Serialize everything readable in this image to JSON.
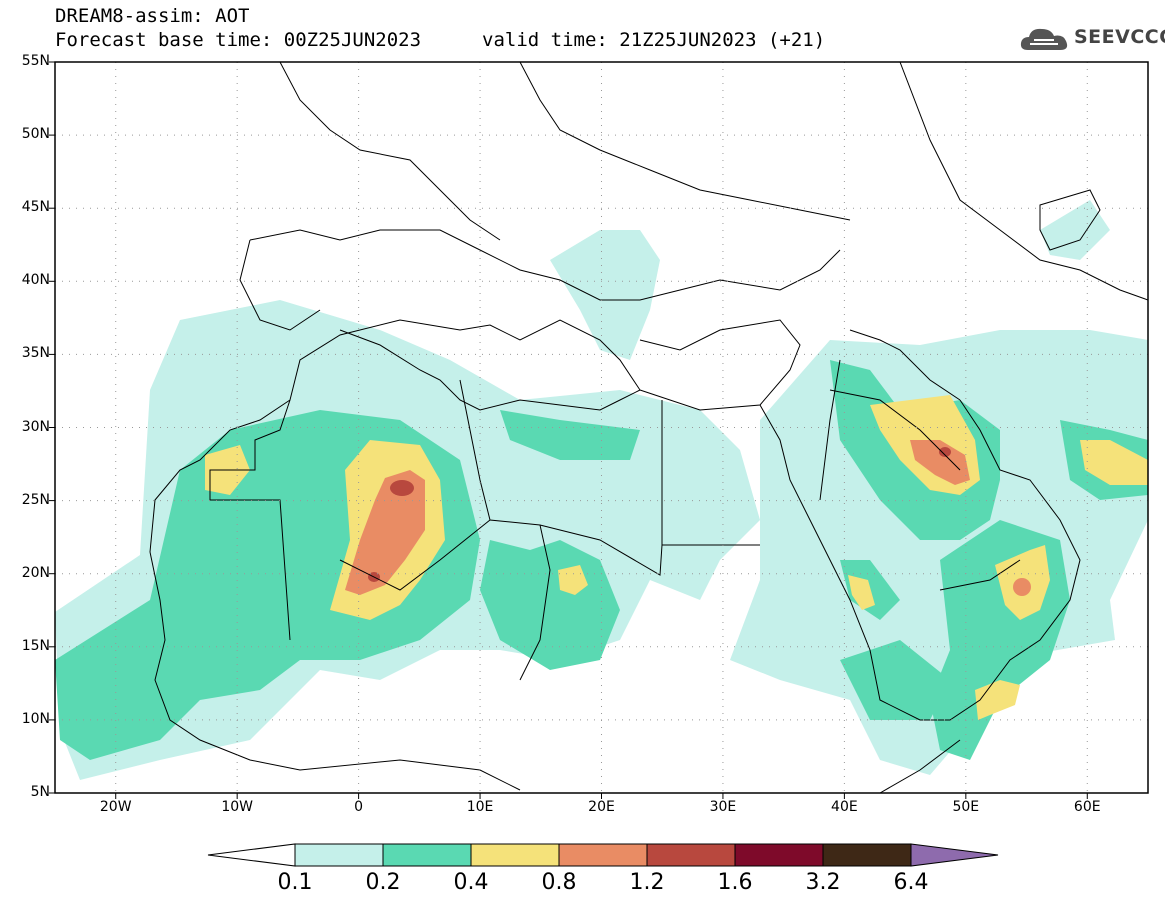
{
  "header": {
    "title": "DREAM8-assim: AOT",
    "base_time": "Forecast base time: 00Z25JUN2023",
    "valid_time": "valid time: 21Z25JUN2023 (+21)",
    "logo_text": "SEEVCCC"
  },
  "map": {
    "lat_labels": [
      "55N",
      "50N",
      "45N",
      "40N",
      "35N",
      "30N",
      "25N",
      "20N",
      "15N",
      "10N",
      "5N"
    ],
    "lon_labels": [
      "20W",
      "10W",
      "0",
      "10E",
      "20E",
      "30E",
      "40E",
      "50E",
      "60E"
    ],
    "lat_range": [
      5,
      55
    ],
    "lon_range": [
      -25,
      65
    ],
    "grid": "dotted"
  },
  "colorbar": {
    "thresholds": [
      "0.1",
      "0.2",
      "0.4",
      "0.8",
      "1.2",
      "1.6",
      "3.2",
      "6.4"
    ],
    "colors": [
      "#ffffff",
      "#c5f0ea",
      "#5ad9b2",
      "#f5e27a",
      "#e98c64",
      "#b8483e",
      "#7e0a2a",
      "#3e2816",
      "#8e6bad"
    ]
  },
  "colors": {
    "c1": "#c5f0ea",
    "c2": "#5ad9b2",
    "c3": "#f5e27a",
    "c4": "#e98c64",
    "c5": "#b8483e"
  }
}
